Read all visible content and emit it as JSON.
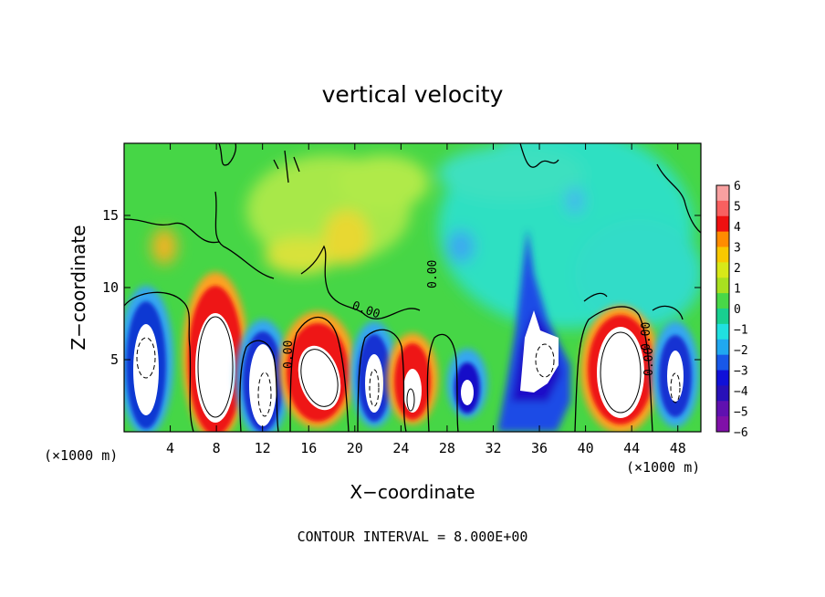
{
  "chart_data": {
    "type": "heatmap",
    "title": "vertical velocity",
    "xlabel": "X−coordinate",
    "ylabel": "Z−coordinate",
    "x_unit": "(×1000 m)",
    "z_unit": "(×1000 m)",
    "footer": "CONTOUR INTERVAL = 8.000E+00",
    "xlim": [
      0,
      50
    ],
    "ylim": [
      0,
      20
    ],
    "x_ticks": [
      "4",
      "8",
      "12",
      "16",
      "20",
      "24",
      "28",
      "32",
      "36",
      "40",
      "44",
      "48"
    ],
    "y_ticks": [
      "5",
      "10",
      "15"
    ],
    "colorbar_ticks": [
      "6",
      "5",
      "4",
      "3",
      "2",
      "1",
      "0",
      "−1",
      "−2",
      "−3",
      "−4",
      "−5",
      "−6"
    ],
    "colorbar_range": [
      -6,
      6
    ],
    "contour_labels": [
      "0.00",
      "0.00",
      "0.00",
      "0.00",
      "0.00"
    ],
    "grid": false,
    "legend": "right colorbar"
  }
}
